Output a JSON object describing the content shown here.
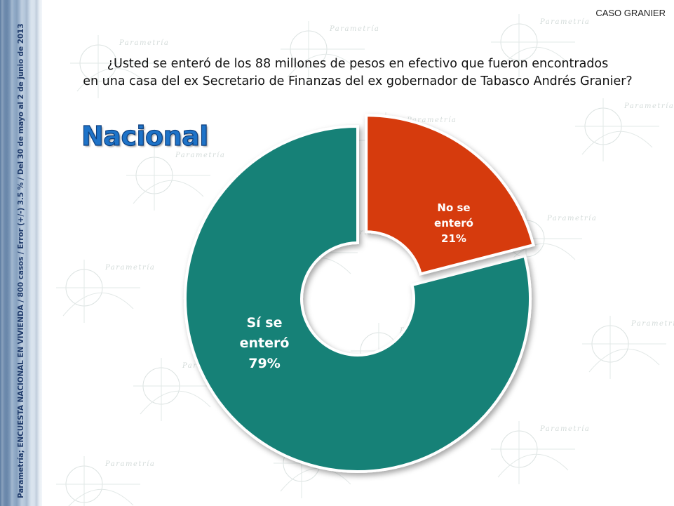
{
  "header": {
    "corner_label": "CASO GRANIER",
    "question_line1": "¿Usted se enteró de los 88 millones de pesos en efectivo que fueron encontrados",
    "question_line2": "en una casa del ex Secretario de Finanzas del ex gobernador de Tabasco Andrés Granier?",
    "region_title": "Nacional"
  },
  "sidebar": {
    "source_note": "Parametría; ENCUESTA NACIONAL EN VIVIENDA / 800 casos / Error (+/-) 3.5 % / Del 30 de mayo al 2 de junio de 2013"
  },
  "watermark": {
    "brand": "Parametría"
  },
  "colors": {
    "si_slice": "#138177",
    "no_slice": "#d63a10",
    "title_blue": "#1e73c8",
    "title_outline": "#0d3f7e",
    "label_text": "#ffffff"
  },
  "chart_data": {
    "type": "pie",
    "variant": "donut-exploded",
    "title": "",
    "slices": [
      {
        "label_line1": "Sí se",
        "label_line2": "enteró",
        "percent_label": "79%",
        "value": 79,
        "color": "#138177",
        "exploded": false
      },
      {
        "label_line1": "No se",
        "label_line2": "enteró",
        "percent_label": "21%",
        "value": 21,
        "color": "#d63a10",
        "exploded": true
      }
    ],
    "legend": "none"
  }
}
